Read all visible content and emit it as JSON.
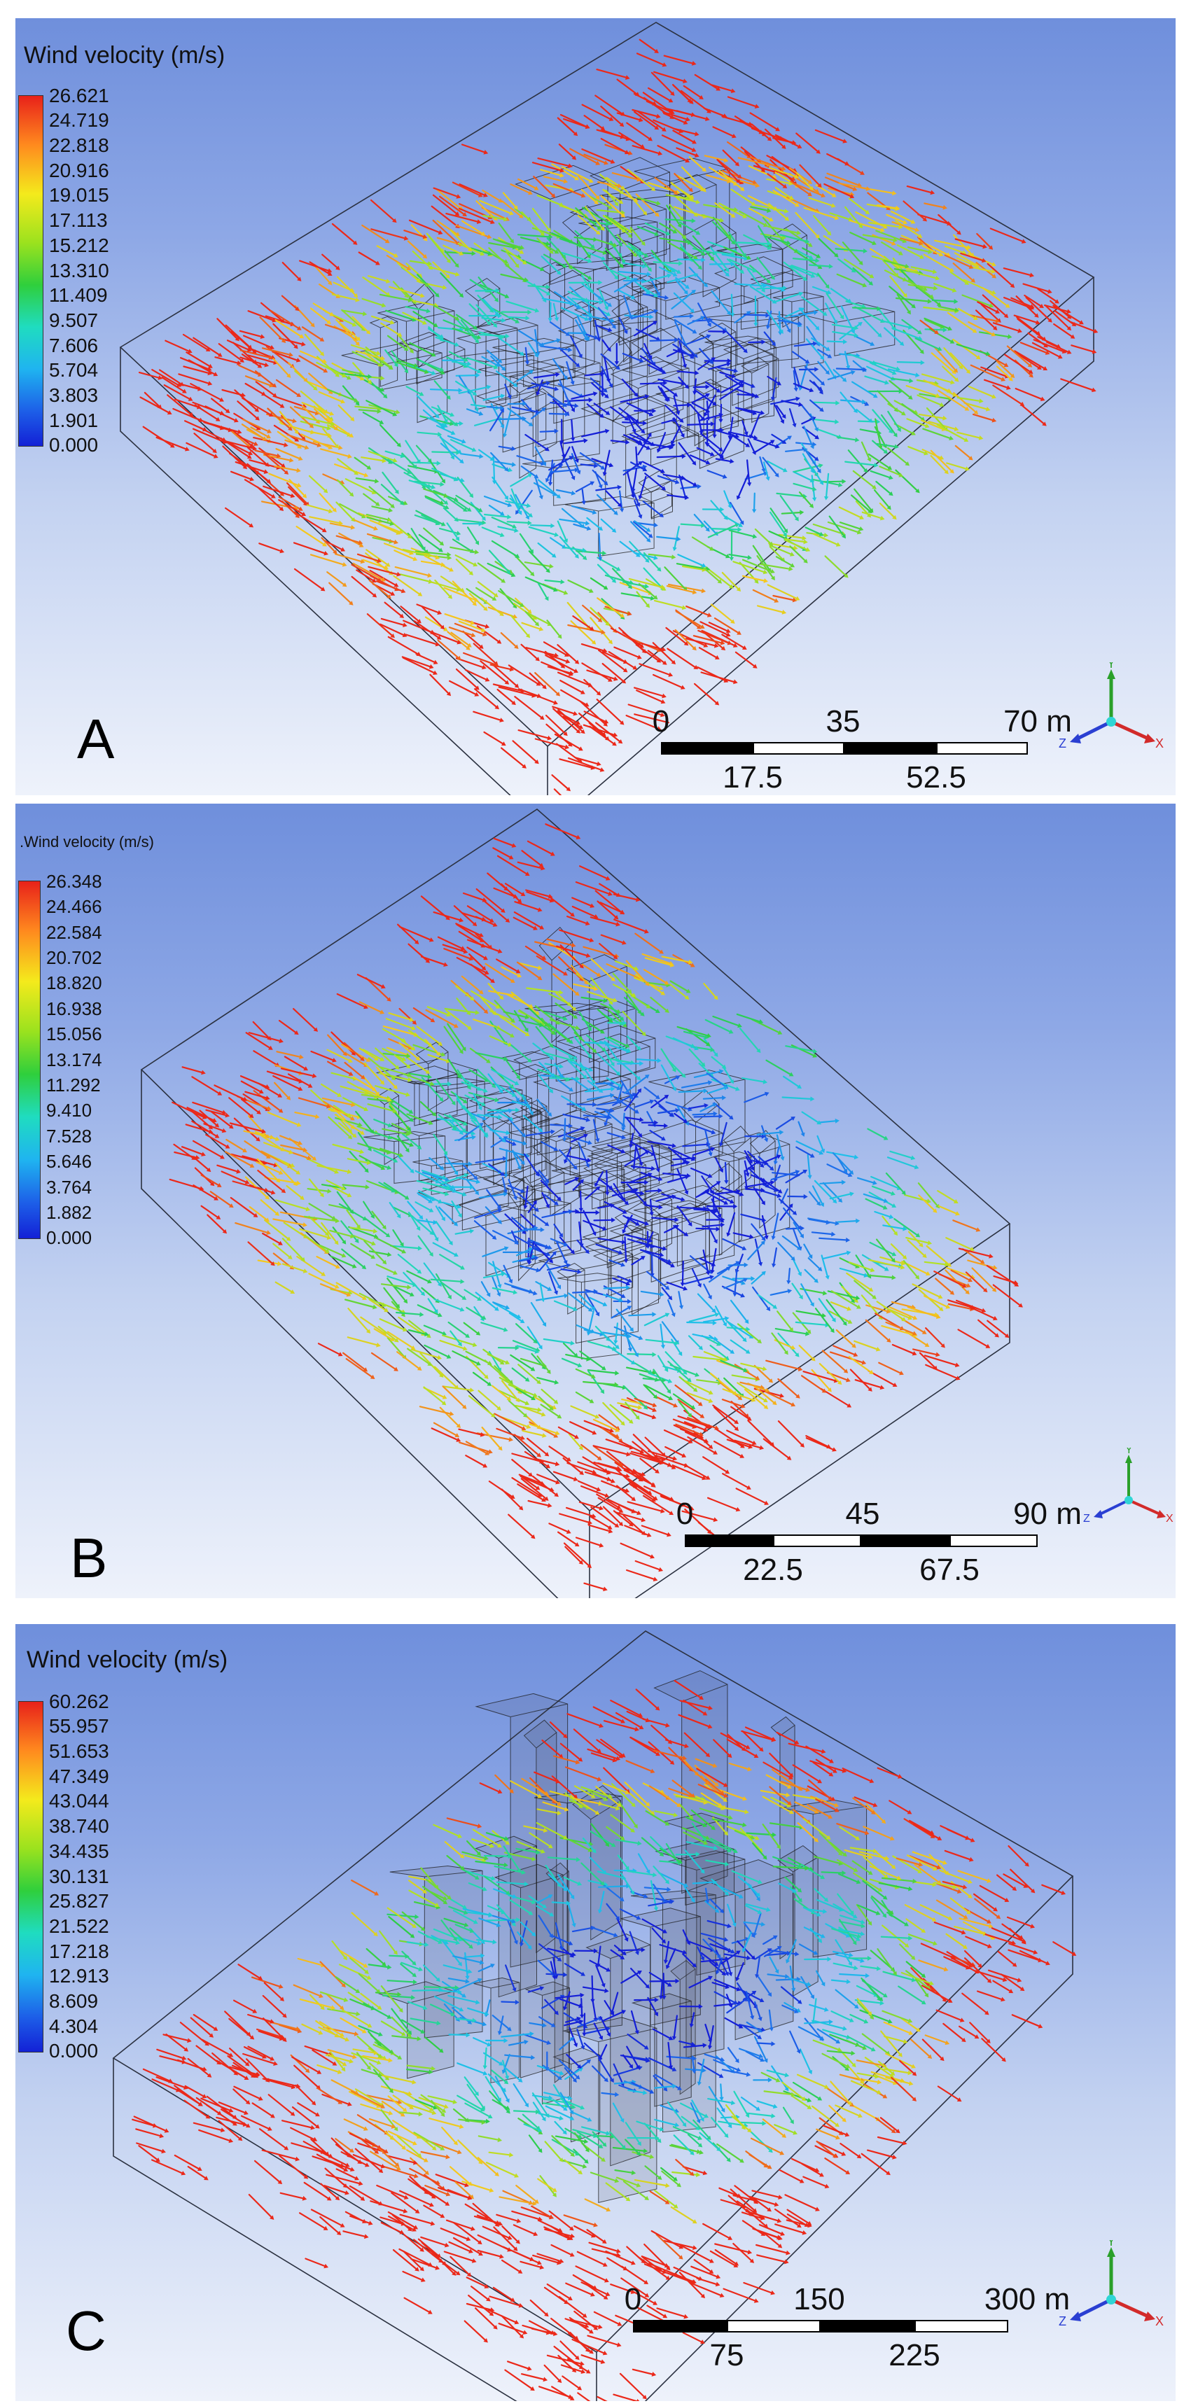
{
  "colors": {
    "wire": "#2b3140",
    "building": "#1a1a1a",
    "axis_x": "#d22a2a",
    "axis_y": "#2aa02a",
    "axis_z": "#2a3fd2"
  },
  "panels": [
    {
      "label": "A",
      "legend_title": "Wind velocity (m/s)",
      "ticks": [
        "26.621",
        "24.719",
        "22.818",
        "20.916",
        "19.015",
        "17.113",
        "15.212",
        "13.310",
        "11.409",
        "9.507",
        "7.606",
        "5.704",
        "3.803",
        "1.901",
        "0.000"
      ],
      "scale_top": [
        "0",
        "35",
        "70 m"
      ],
      "scale_bottom": [
        "17.5",
        "52.5"
      ],
      "axes": {
        "x": "X",
        "y": "Y",
        "z": "Z"
      }
    },
    {
      "label": "B",
      "legend_title": ".Wind velocity (m/s)",
      "ticks": [
        "26.348",
        "24.466",
        "22.584",
        "20.702",
        "18.820",
        "16.938",
        "15.056",
        "13.174",
        "11.292",
        "9.410",
        "7.528",
        "5.646",
        "3.764",
        "1.882",
        "0.000"
      ],
      "scale_top": [
        "0",
        "45",
        "90 m"
      ],
      "scale_bottom": [
        "22.5",
        "67.5"
      ],
      "axes": {
        "x": "X",
        "y": "Y",
        "z": "Z"
      }
    },
    {
      "label": "C",
      "legend_title": "Wind velocity (m/s)",
      "ticks": [
        "60.262",
        "55.957",
        "51.653",
        "47.349",
        "43.044",
        "38.740",
        "34.435",
        "30.131",
        "25.827",
        "21.522",
        "17.218",
        "12.913",
        "8.609",
        "4.304",
        "0.000"
      ],
      "scale_top": [
        "0",
        "150",
        "300 m"
      ],
      "scale_bottom": [
        "75",
        "225"
      ],
      "axes": {
        "x": "X",
        "y": "Y",
        "z": "Z"
      }
    }
  ]
}
